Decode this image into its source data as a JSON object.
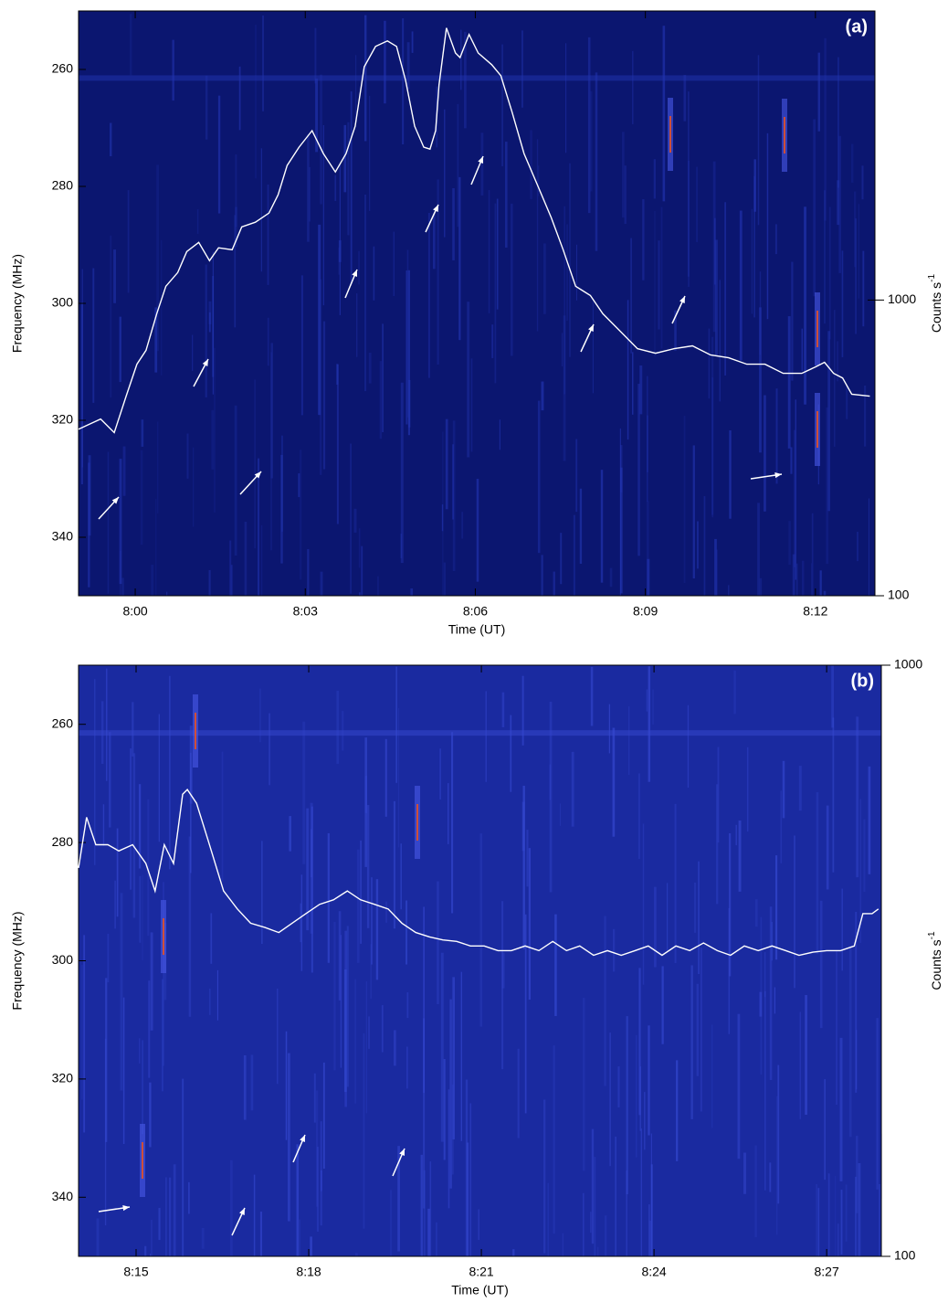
{
  "chart_data": [
    {
      "type": "line",
      "panel_label": "(a)",
      "xlabel": "Time (UT)",
      "ylabel": "Frequency (MHz)",
      "y2label": "Counts s",
      "y2label_sup": "-1",
      "xlim": [
        479,
        493.05
      ],
      "xticks": [
        {
          "value": 480,
          "label": "8:00"
        },
        {
          "value": 483,
          "label": "8:03"
        },
        {
          "value": 486,
          "label": "8:06"
        },
        {
          "value": 489,
          "label": "8:09"
        },
        {
          "value": 492,
          "label": "8:12"
        }
      ],
      "ylim": [
        350,
        250
      ],
      "yticks": [
        260,
        280,
        300,
        320,
        340
      ],
      "y2lim": [
        100,
        9500
      ],
      "y2ticks": [
        100,
        1000
      ],
      "y2scale": "log",
      "series": [
        {
          "color": "#ffffff",
          "axis": "y2",
          "x": [
            479.0,
            479.39,
            479.63,
            479.84,
            480.03,
            480.19,
            480.38,
            480.54,
            480.75,
            480.91,
            481.12,
            481.31,
            481.47,
            481.71,
            481.88,
            482.12,
            482.36,
            482.52,
            482.68,
            482.89,
            483.12,
            483.32,
            483.53,
            483.72,
            483.88,
            484.04,
            484.24,
            484.45,
            484.61,
            484.77,
            484.93,
            485.09,
            485.2,
            485.3,
            485.36,
            485.49,
            485.65,
            485.73,
            485.89,
            486.05,
            486.29,
            486.45,
            486.65,
            486.86,
            487.1,
            487.34,
            487.55,
            487.77,
            488.03,
            488.25,
            488.54,
            488.86,
            489.18,
            489.51,
            489.83,
            490.15,
            490.47,
            490.79,
            491.11,
            491.43,
            491.76,
            492.0,
            492.16,
            492.32,
            492.48,
            492.64,
            492.96
          ],
          "values": [
            366,
            396,
            356,
            473,
            607,
            676,
            899,
            1113,
            1239,
            1459,
            1567,
            1359,
            1502,
            1480,
            1768,
            1834,
            1968,
            2270,
            2852,
            3289,
            3741,
            3128,
            2712,
            3128,
            3873,
            6152,
            7210,
            7520,
            7210,
            5530,
            3873,
            3289,
            3240,
            3741,
            5340,
            8320,
            6850,
            6610,
            7910,
            6850,
            6250,
            5740,
            4310,
            3128,
            2440,
            1900,
            1480,
            1113,
            1036,
            899,
            790,
            685,
            661,
            685,
            700,
            652,
            638,
            607,
            607,
            565,
            565,
            594,
            616,
            565,
            545,
            480,
            473
          ]
        }
      ]
    },
    {
      "type": "line",
      "panel_label": "(b)",
      "xlabel": "Time (UT)",
      "ylabel": "Frequency (MHz)",
      "y2label": "Counts s",
      "y2label_sup": "-1",
      "xlim": [
        494,
        507.95
      ],
      "xticks": [
        {
          "value": 495,
          "label": "8:15"
        },
        {
          "value": 498,
          "label": "8:18"
        },
        {
          "value": 501,
          "label": "8:21"
        },
        {
          "value": 504,
          "label": "8:24"
        },
        {
          "value": 507,
          "label": "8:27"
        }
      ],
      "ylim": [
        350,
        250
      ],
      "yticks": [
        260,
        280,
        300,
        320,
        340
      ],
      "y2lim": [
        100,
        1000
      ],
      "y2ticks": [
        100,
        1000
      ],
      "y2scale": "log",
      "series": [
        {
          "color": "#ffffff",
          "axis": "y2",
          "x": [
            494.0,
            494.14,
            494.3,
            494.51,
            494.7,
            494.94,
            495.17,
            495.33,
            495.49,
            495.65,
            495.81,
            495.89,
            496.05,
            496.25,
            496.52,
            496.76,
            496.99,
            497.24,
            497.48,
            497.71,
            497.95,
            498.19,
            498.43,
            498.67,
            498.9,
            499.14,
            499.38,
            499.62,
            499.86,
            500.1,
            500.33,
            500.57,
            500.81,
            501.05,
            501.29,
            501.52,
            501.76,
            502.0,
            502.24,
            502.48,
            502.71,
            502.95,
            503.19,
            503.43,
            503.67,
            503.9,
            504.14,
            504.38,
            504.62,
            504.86,
            505.1,
            505.33,
            505.57,
            505.81,
            506.05,
            506.29,
            506.52,
            506.76,
            507.0,
            507.24,
            507.48,
            507.63,
            507.79,
            507.9
          ],
          "values": [
            454,
            553,
            497,
            497,
            485,
            497,
            462,
            415,
            497,
            462,
            605,
            616,
            584,
            506,
            415,
            387,
            366,
            360,
            353,
            366,
            380,
            394,
            401,
            415,
            401,
            394,
            387,
            366,
            353,
            347,
            343,
            341,
            335,
            335,
            329,
            329,
            335,
            329,
            341,
            329,
            335,
            323,
            329,
            323,
            329,
            335,
            323,
            335,
            329,
            339,
            329,
            323,
            335,
            329,
            335,
            329,
            323,
            327,
            329,
            329,
            335,
            380,
            380,
            387
          ]
        }
      ]
    }
  ]
}
